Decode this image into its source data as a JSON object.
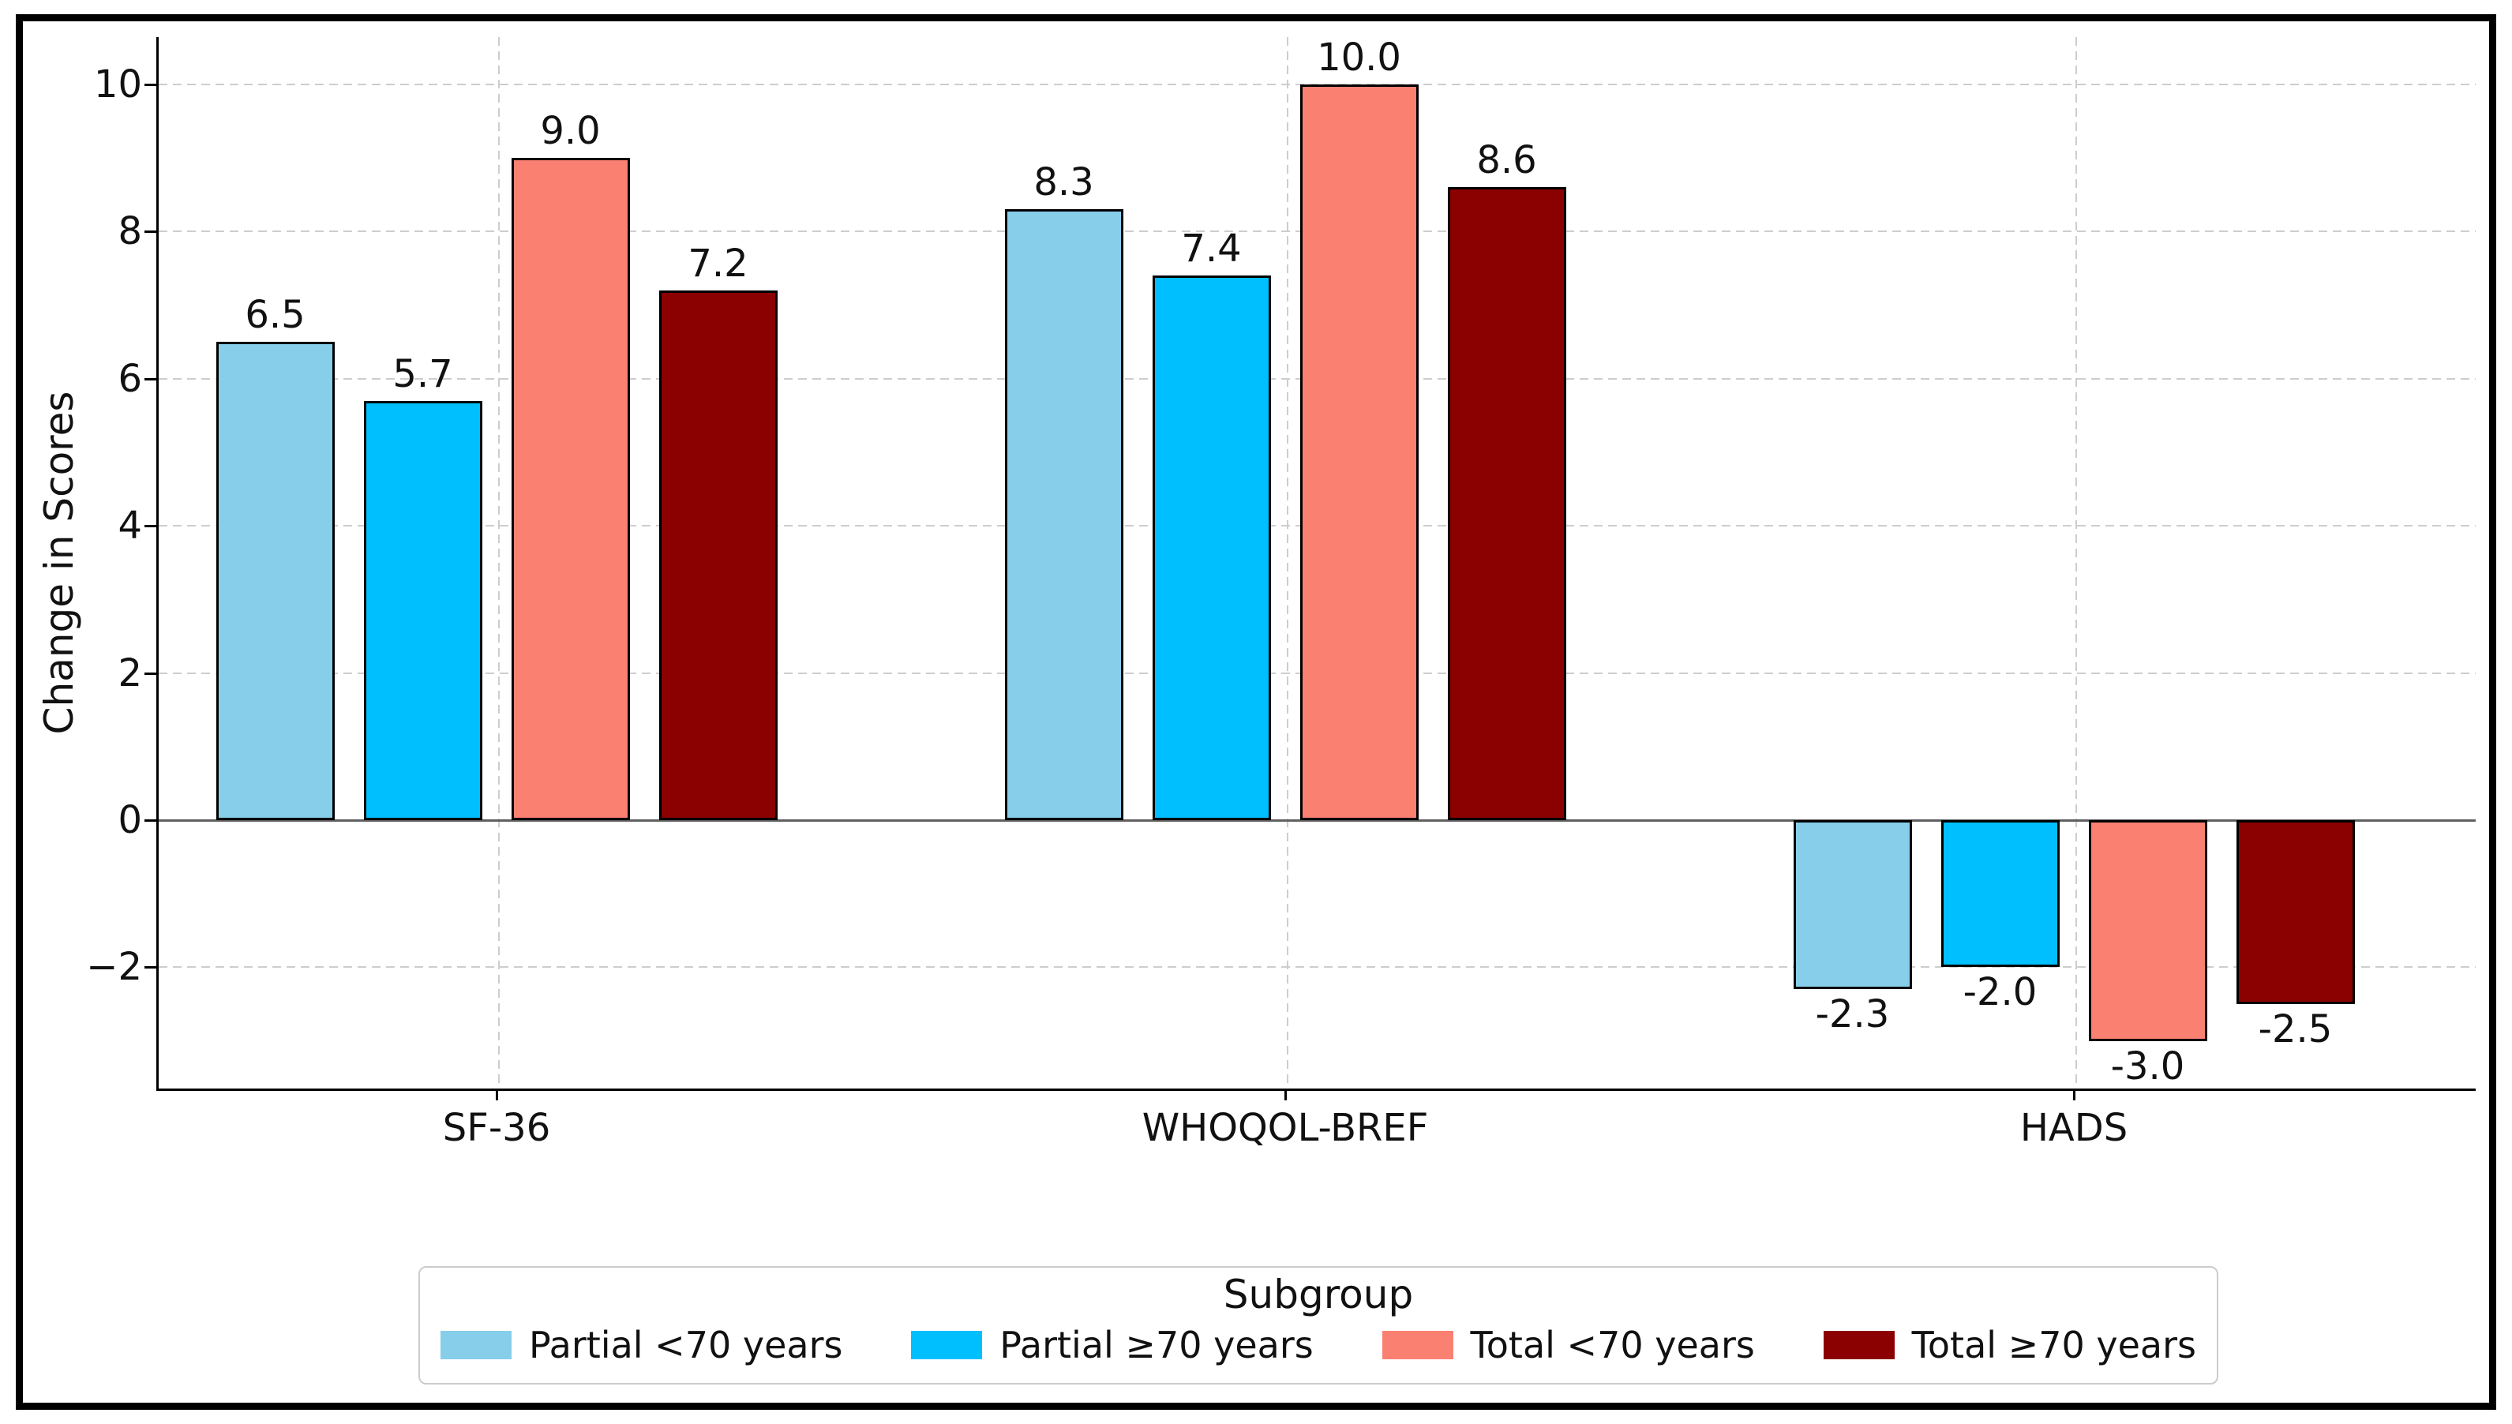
{
  "chart_data": {
    "type": "bar",
    "title": "",
    "xlabel": "",
    "ylabel": "Change in Scores",
    "categories": [
      "SF-36",
      "WHOQOL-BREF",
      "HADS"
    ],
    "series": [
      {
        "name": "Partial <70 years",
        "color": "#87CEEB",
        "values": [
          6.5,
          8.3,
          -2.3
        ],
        "labels": [
          "6.5",
          "8.3",
          "-2.3"
        ]
      },
      {
        "name": "Partial ≥70 years",
        "color": "#00BFFF",
        "values": [
          5.7,
          7.4,
          -2.0
        ],
        "labels": [
          "5.7",
          "7.4",
          "-2.0"
        ]
      },
      {
        "name": "Total <70 years",
        "color": "#FA8072",
        "values": [
          9.0,
          10.0,
          -3.0
        ],
        "labels": [
          "9.0",
          "10.0",
          "-3.0"
        ]
      },
      {
        "name": "Total ≥70 years",
        "color": "#8B0000",
        "values": [
          7.2,
          8.6,
          -2.5
        ],
        "labels": [
          "7.2",
          "8.6",
          "-2.5"
        ]
      }
    ],
    "yticks": [
      {
        "value": 10,
        "label": "10"
      },
      {
        "value": 8,
        "label": "8"
      },
      {
        "value": 6,
        "label": "6"
      },
      {
        "value": 4,
        "label": "4"
      },
      {
        "value": 2,
        "label": "2"
      },
      {
        "value": 0,
        "label": "0"
      },
      {
        "value": -2,
        "label": "−2"
      }
    ],
    "ylim": [
      -3.65,
      10.65
    ],
    "grid": true,
    "zero_line": true,
    "value_labels_shown": true,
    "legend": {
      "title": "Subgroup",
      "position": "lower center outside"
    }
  },
  "colors": {
    "background": "#ffffff",
    "figure_frame": "#000000",
    "spine": "#000000",
    "grid": "#cdcdcd",
    "zero_line": "#606060",
    "text": "#111111",
    "bar_edge": "#000000",
    "legend_border": "#cccccc"
  }
}
